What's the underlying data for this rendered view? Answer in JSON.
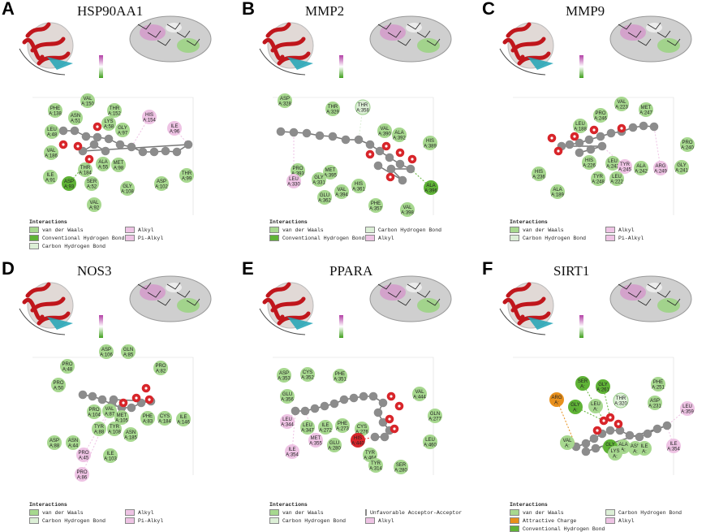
{
  "colors": {
    "van_der_waals": "#a7d88f",
    "conventional_hbond": "#5fb336",
    "carbon_hbond": "#dcefd6",
    "alkyl": "#eec3e4",
    "pi_alkyl": "#eec3e4",
    "attractive_charge": "#e8901c",
    "unfavorable_acceptor": "#d8252a",
    "ligand_carbon": "#8c8c8c",
    "ligand_oxygen": "#d8252a"
  },
  "legend_title": "Interactions",
  "interaction_types": {
    "vdw": "van der Waals",
    "chb": "Conventional Hydrogen Bond",
    "cbh": "Carbon Hydrogen Bond",
    "alkyl": "Alkyl",
    "pialkyl": "Pi-Alkyl",
    "attractive": "Attractive Charge",
    "unfav": "Unfavorable Acceptor-Acceptor"
  },
  "panels": [
    {
      "label": "A",
      "title": "HSP90AA1",
      "legend": [
        "vdw",
        "alkyl",
        "chb",
        "pialkyl",
        "cbh"
      ],
      "residues": [
        {
          "name": "VAL",
          "num": "A:150",
          "type": "vdw"
        },
        {
          "name": "PHE",
          "num": "A:138",
          "type": "vdw"
        },
        {
          "name": "THR",
          "num": "A:152",
          "type": "vdw"
        },
        {
          "name": "ASN",
          "num": "A:51",
          "type": "vdw"
        },
        {
          "name": "HIS",
          "num": "A:154",
          "type": "alkyl"
        },
        {
          "name": "LEU",
          "num": "A:48",
          "type": "vdw"
        },
        {
          "name": "LYS",
          "num": "A:58",
          "type": "vdw"
        },
        {
          "name": "GLY",
          "num": "A:97",
          "type": "vdw"
        },
        {
          "name": "ILE",
          "num": "A:96",
          "type": "alkyl"
        },
        {
          "name": "VAL",
          "num": "A:186",
          "type": "vdw"
        },
        {
          "name": "ALA",
          "num": "A:55",
          "type": "vdw"
        },
        {
          "name": "MET",
          "num": "A:98",
          "type": "vdw"
        },
        {
          "name": "THR",
          "num": "A:184",
          "type": "vdw"
        },
        {
          "name": "ILE",
          "num": "A:91",
          "type": "vdw"
        },
        {
          "name": "ASP",
          "num": "A:93",
          "type": "chb"
        },
        {
          "name": "SER",
          "num": "A:52",
          "type": "vdw"
        },
        {
          "name": "GLY",
          "num": "A:108",
          "type": "vdw"
        },
        {
          "name": "ASP",
          "num": "A:102",
          "type": "vdw"
        },
        {
          "name": "THR",
          "num": "A:99",
          "type": "vdw"
        },
        {
          "name": "VAL",
          "num": "A:92",
          "type": "vdw"
        }
      ]
    },
    {
      "label": "B",
      "title": "MMP2",
      "legend": [
        "vdw",
        "cbh",
        "chb",
        "alkyl"
      ],
      "residues": [
        {
          "name": "ASP",
          "num": "A:328",
          "type": "vdw"
        },
        {
          "name": "THR",
          "num": "A:329",
          "type": "vdw"
        },
        {
          "name": "THR",
          "num": "A:358",
          "type": "cbh"
        },
        {
          "name": "VAL",
          "num": "A:390",
          "type": "vdw"
        },
        {
          "name": "ALA",
          "num": "A:392",
          "type": "vdw"
        },
        {
          "name": "HIS",
          "num": "A:389",
          "type": "vdw"
        },
        {
          "name": "PRO",
          "num": "A:393",
          "type": "vdw"
        },
        {
          "name": "MET",
          "num": "A:395",
          "type": "vdw"
        },
        {
          "name": "LEU",
          "num": "A:330",
          "type": "alkyl"
        },
        {
          "name": "GLY",
          "num": "A:331",
          "type": "vdw"
        },
        {
          "name": "VAL",
          "num": "A:394",
          "type": "vdw"
        },
        {
          "name": "HIS",
          "num": "A:361",
          "type": "vdw"
        },
        {
          "name": "GLU",
          "num": "A:362",
          "type": "vdw"
        },
        {
          "name": "ALA",
          "num": "A:396",
          "type": "chb"
        },
        {
          "name": "PHE",
          "num": "A:357",
          "type": "vdw"
        },
        {
          "name": "VAL",
          "num": "A:398",
          "type": "vdw"
        }
      ]
    },
    {
      "label": "C",
      "title": "MMP9",
      "legend": [
        "vdw",
        "alkyl",
        "cbh",
        "pialkyl"
      ],
      "residues": [
        {
          "name": "VAL",
          "num": "A:223",
          "type": "vdw"
        },
        {
          "name": "PRO",
          "num": "A:246",
          "type": "vdw"
        },
        {
          "name": "MET",
          "num": "A:247",
          "type": "vdw"
        },
        {
          "name": "LEU",
          "num": "A:188",
          "type": "vdw"
        },
        {
          "name": "HIS",
          "num": "A:226",
          "type": "vdw"
        },
        {
          "name": "LEU",
          "num": "A:243",
          "type": "vdw"
        },
        {
          "name": "TYR",
          "num": "A:245",
          "type": "alkyl"
        },
        {
          "name": "PRO",
          "num": "A:240",
          "type": "vdw"
        },
        {
          "name": "HIS",
          "num": "A:236",
          "type": "vdw"
        },
        {
          "name": "TYR",
          "num": "A:248",
          "type": "vdw"
        },
        {
          "name": "LEU",
          "num": "A:222",
          "type": "vdw"
        },
        {
          "name": "ALA",
          "num": "A:242",
          "type": "vdw"
        },
        {
          "name": "ARG",
          "num": "A:249",
          "type": "alkyl"
        },
        {
          "name": "GLY",
          "num": "A:241",
          "type": "vdw"
        },
        {
          "name": "ALA",
          "num": "A:189",
          "type": "vdw"
        }
      ]
    },
    {
      "label": "D",
      "title": "NOS3",
      "legend": [
        "vdw",
        "alkyl",
        "cbh",
        "pialkyl"
      ],
      "residues": [
        {
          "name": "ASP",
          "num": "A:106",
          "type": "vdw"
        },
        {
          "name": "GLN",
          "num": "A:85",
          "type": "vdw"
        },
        {
          "name": "PRO",
          "num": "A:48",
          "type": "vdw"
        },
        {
          "name": "PRO",
          "num": "A:82",
          "type": "vdw"
        },
        {
          "name": "PRO",
          "num": "A:50",
          "type": "vdw"
        },
        {
          "name": "PRO",
          "num": "A:104",
          "type": "vdw"
        },
        {
          "name": "VAL",
          "num": "A:87",
          "type": "vdw"
        },
        {
          "name": "MET",
          "num": "A:105",
          "type": "vdw"
        },
        {
          "name": "PHE",
          "num": "A:83",
          "type": "vdw"
        },
        {
          "name": "CYS",
          "num": "A:184",
          "type": "vdw"
        },
        {
          "name": "ILE",
          "num": "A:146",
          "type": "vdw"
        },
        {
          "name": "TYR",
          "num": "A:88",
          "type": "vdw"
        },
        {
          "name": "TYR",
          "num": "A:108",
          "type": "vdw"
        },
        {
          "name": "ASN",
          "num": "A:185",
          "type": "vdw"
        },
        {
          "name": "ASP",
          "num": "A:88",
          "type": "vdw"
        },
        {
          "name": "ASN",
          "num": "A:44",
          "type": "vdw"
        },
        {
          "name": "PRO",
          "num": "A:45",
          "type": "alkyl"
        },
        {
          "name": "ILE",
          "num": "A:103",
          "type": "vdw"
        },
        {
          "name": "PRO",
          "num": "A:86",
          "type": "alkyl"
        }
      ]
    },
    {
      "label": "E",
      "title": "PPARA",
      "legend": [
        "vdw",
        "unfav",
        "cbh",
        "alkyl"
      ],
      "residues": [
        {
          "name": "ASP",
          "num": "A:353",
          "type": "vdw"
        },
        {
          "name": "CYS",
          "num": "A:352",
          "type": "vdw"
        },
        {
          "name": "PHE",
          "num": "A:351",
          "type": "vdw"
        },
        {
          "name": "GLU",
          "num": "A:356",
          "type": "vdw"
        },
        {
          "name": "VAL",
          "num": "A:444",
          "type": "vdw"
        },
        {
          "name": "LEU",
          "num": "A:344",
          "type": "alkyl"
        },
        {
          "name": "LEU",
          "num": "A:347",
          "type": "vdw"
        },
        {
          "name": "ILE",
          "num": "A:272",
          "type": "vdw"
        },
        {
          "name": "PHE",
          "num": "A:273",
          "type": "vdw"
        },
        {
          "name": "CYS",
          "num": "A:276",
          "type": "vdw"
        },
        {
          "name": "GLN",
          "num": "A:277",
          "type": "vdw"
        },
        {
          "name": "MET",
          "num": "A:355",
          "type": "alkyl"
        },
        {
          "name": "GLU",
          "num": "A:280",
          "type": "vdw"
        },
        {
          "name": "HIS",
          "num": "A:440",
          "type": "unfav"
        },
        {
          "name": "LEU",
          "num": "A:460",
          "type": "vdw"
        },
        {
          "name": "ILE",
          "num": "A:354",
          "type": "alkyl"
        },
        {
          "name": "TYR",
          "num": "A:464",
          "type": "vdw"
        },
        {
          "name": "TYR",
          "num": "A:314",
          "type": "vdw"
        },
        {
          "name": "SER",
          "num": "A:280",
          "type": "vdw"
        }
      ]
    },
    {
      "label": "F",
      "title": "SIRT1",
      "legend": [
        "vdw",
        "cbh",
        "attractive",
        "alkyl",
        "chb"
      ],
      "residues": [
        {
          "name": "PHE",
          "num": "A:251",
          "type": "vdw"
        },
        {
          "name": "ASP",
          "num": "A:231",
          "type": "vdw"
        },
        {
          "name": "THR",
          "num": "A:320",
          "type": "cbh"
        },
        {
          "name": "GLY",
          "num": "A:261",
          "type": "chb"
        },
        {
          "name": "SER",
          "num": "A:",
          "type": "chb"
        },
        {
          "name": "ARG",
          "num": "A:",
          "type": "attractive"
        },
        {
          "name": "GLY",
          "num": "A:",
          "type": "chb"
        },
        {
          "name": "LEU",
          "num": "A:",
          "type": "vdw"
        },
        {
          "name": "ALA",
          "num": "A:",
          "type": "vdw"
        },
        {
          "name": "HIS",
          "num": "A:",
          "type": "vdw"
        },
        {
          "name": "ASN",
          "num": "A:",
          "type": "vdw"
        },
        {
          "name": "ILE",
          "num": "A:",
          "type": "vdw"
        },
        {
          "name": "LEU",
          "num": "A:359",
          "type": "alkyl"
        },
        {
          "name": "ILE",
          "num": "A:354",
          "type": "alkyl"
        },
        {
          "name": "GLY",
          "num": "A:",
          "type": "chb"
        },
        {
          "name": "LYS",
          "num": "A:",
          "type": "vdw"
        },
        {
          "name": "VAL",
          "num": "A:",
          "type": "vdw"
        }
      ]
    }
  ]
}
